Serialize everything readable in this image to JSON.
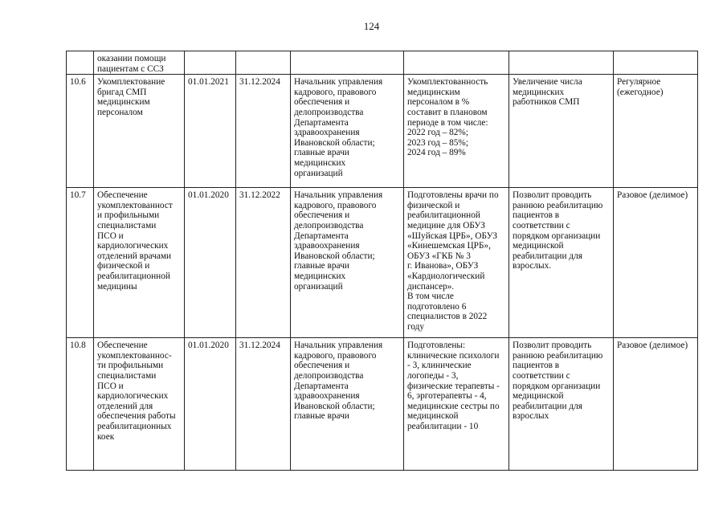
{
  "page_number": "124",
  "rows": [
    {
      "num": "",
      "name": "оказании помощи\nпациентам с ССЗ",
      "start": "",
      "end": "",
      "responsible": "",
      "indicator": "",
      "result": "",
      "type": ""
    },
    {
      "num": "10.6",
      "name": "Укомплектование\nбригад СМП\nмедицинским\nперсоналом",
      "start": "01.01.2021",
      "end": "31.12.2024",
      "responsible": "Начальник управления\nкадрового, правового\nобеспечения и\nделопроизводства\nДепартамента\nздравоохранения\nИвановской области;\nглавные врачи\nмедицинских\nорганизаций",
      "indicator": "Укомплектованность\nмедицинским\nперсоналом в %\nсоставит в плановом\nпериоде в том числе:\n2022 год – 82%;\n2023 год – 85%;\n2024 год – 89%",
      "result": "Увеличение числа\nмедицинских\nработников СМП",
      "type": "Регулярное\n(ежегодное)"
    },
    {
      "num": "10.7",
      "name": "Обеспечение\nукомплектованност\nи профильными\nспециалистами\nПСО и\nкардиологических\nотделений врачами\nфизической и\nреабилитационной\nмедицины",
      "start": "01.01.2020",
      "end": "31.12.2022",
      "responsible": "Начальник управления\nкадрового, правового\nобеспечения и\nделопроизводства\nДепартамента\nздравоохранения\nИвановской области;\nглавные врачи\nмедицинских\nорганизаций",
      "indicator": "Подготовлены врачи по\nфизической и\nреабилитационной\nмедицине для ОБУЗ\n«Шуйская ЦРБ», ОБУЗ\n«Кинешемская ЦРБ»,\nОБУЗ «ГКБ № 3\nг. Иванова», ОБУЗ\n«Кардиологический\nдиспансер».\nВ том числе\nподготовлено 6\nспециалистов в 2022\nгоду",
      "result": "Позволит проводить\nраннюю реабилитацию\nпациентов в\nсоответствии с\nпорядком организации\nмедицинской\nреабилитации для\nвзрослых.",
      "type": "Разовое (делимое)"
    },
    {
      "num": "10.8",
      "name": "Обеспечение\nукомплектованнос-\nти профильными\nспециалистами\nПСО и\nкардиологических\nотделений для\nобеспечения работы\nреабилитационных\nкоек",
      "start": "01.01.2020",
      "end": "31.12.2024",
      "responsible": "Начальник управления\nкадрового, правового\nобеспечения и\nделопроизводства\nДепартамента\nздравоохранения\nИвановской области;\nглавные врачи",
      "indicator": "Подготовлены:\nклинические психологи\n- 3, клинические\nлогопеды - 3,\nфизические терапевты -\n6, эрготерапевты - 4,\nмедицинские сестры по\nмедицинской\nреабилитации - 10",
      "result": "Позволит проводить\nраннюю реабилитацию\nпациентов в\nсоответствии с\nпорядком организации\nмедицинской\nреабилитации для\nвзрослых",
      "type": "Разовое (делимое)"
    }
  ]
}
